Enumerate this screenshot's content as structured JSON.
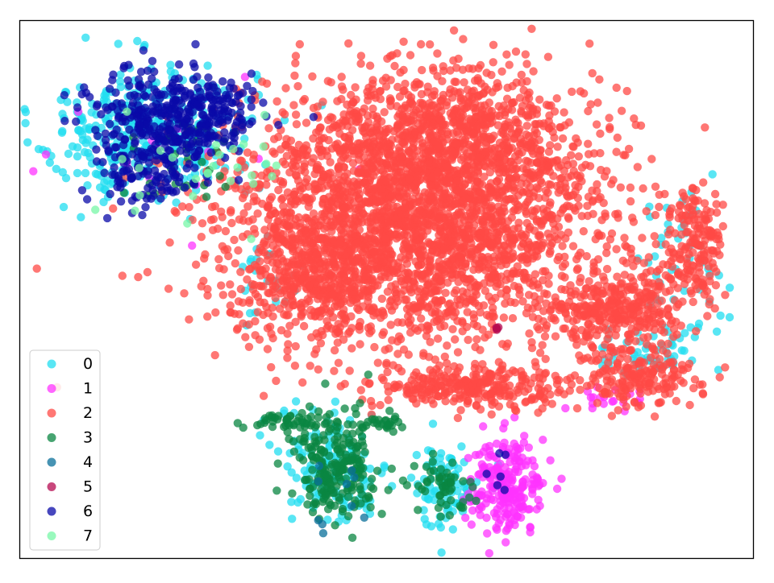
{
  "chart_data": {
    "type": "scatter",
    "title": "",
    "xlabel": "",
    "ylabel": "",
    "axes_ticks": false,
    "grid": false,
    "legend": {
      "placement": "lower-left"
    },
    "xlim": [
      0,
      100
    ],
    "ylim": [
      0,
      100
    ],
    "series": [
      {
        "name": "0",
        "color": "#22ddf0",
        "clusters": [
          {
            "cx": 17.0,
            "cy": 79.5,
            "sx": 7.5,
            "sy": 6.2,
            "n": 380
          },
          {
            "cx": 43.0,
            "cy": 17.0,
            "sx": 3.8,
            "sy": 5.5,
            "n": 130
          },
          {
            "cx": 58.0,
            "cy": 13.5,
            "sx": 2.5,
            "sy": 3.8,
            "n": 90
          },
          {
            "cx": 90.0,
            "cy": 55.0,
            "sx": 3.2,
            "sy": 6.5,
            "n": 45
          },
          {
            "cx": 86.0,
            "cy": 38.0,
            "sx": 4.0,
            "sy": 2.5,
            "n": 50
          },
          {
            "cx": 34.0,
            "cy": 52.0,
            "sx": 2.0,
            "sy": 3.5,
            "n": 22
          }
        ]
      },
      {
        "name": "1",
        "color": "#ff33ff",
        "clusters": [
          {
            "cx": 66.5,
            "cy": 13.5,
            "sx": 2.6,
            "sy": 4.5,
            "n": 230
          },
          {
            "cx": 80.0,
            "cy": 29.5,
            "sx": 3.0,
            "sy": 1.4,
            "n": 20
          },
          {
            "cx": 20.0,
            "cy": 77.0,
            "sx": 9.0,
            "sy": 7.0,
            "n": 14
          }
        ]
      },
      {
        "name": "2",
        "color": "#ff4a45",
        "clusters": [
          {
            "cx": 54.0,
            "cy": 64.0,
            "sx": 12.5,
            "sy": 11.5,
            "n": 3000
          },
          {
            "cx": 60.0,
            "cy": 80.0,
            "sx": 8.0,
            "sy": 5.0,
            "n": 400
          },
          {
            "cx": 40.0,
            "cy": 52.0,
            "sx": 4.5,
            "sy": 5.5,
            "n": 300
          },
          {
            "cx": 82.0,
            "cy": 46.0,
            "sx": 4.5,
            "sy": 4.0,
            "n": 340
          },
          {
            "cx": 92.0,
            "cy": 58.0,
            "sx": 2.0,
            "sy": 5.5,
            "n": 170
          },
          {
            "cx": 62.0,
            "cy": 32.0,
            "sx": 7.0,
            "sy": 2.0,
            "n": 300
          },
          {
            "cx": 84.0,
            "cy": 33.0,
            "sx": 4.0,
            "sy": 2.5,
            "n": 160
          }
        ]
      },
      {
        "name": "3",
        "color": "#0a8542",
        "clusters": [
          {
            "cx": 43.0,
            "cy": 16.5,
            "sx": 3.0,
            "sy": 5.0,
            "n": 230
          },
          {
            "cx": 57.5,
            "cy": 13.5,
            "sx": 1.8,
            "sy": 3.0,
            "n": 55
          },
          {
            "cx": 36.0,
            "cy": 25.5,
            "sx": 2.5,
            "sy": 0.9,
            "n": 40
          },
          {
            "cx": 50.0,
            "cy": 25.5,
            "sx": 1.6,
            "sy": 0.8,
            "n": 22
          },
          {
            "cx": 23.0,
            "cy": 73.0,
            "sx": 5.0,
            "sy": 4.5,
            "n": 32
          }
        ]
      },
      {
        "name": "4",
        "color": "#0a6f9a",
        "clusters": [
          {
            "cx": 44.0,
            "cy": 12.0,
            "sx": 3.0,
            "sy": 6.0,
            "n": 10
          }
        ]
      },
      {
        "name": "5",
        "color": "#b50a50",
        "clusters": [
          {
            "cx": 65.0,
            "cy": 42.8,
            "sx": 0.35,
            "sy": 0.25,
            "n": 4
          }
        ]
      },
      {
        "name": "6",
        "color": "#0a0aa8",
        "clusters": [
          {
            "cx": 20.0,
            "cy": 82.0,
            "sx": 5.5,
            "sy": 4.2,
            "n": 330
          },
          {
            "cx": 17.0,
            "cy": 71.5,
            "sx": 3.5,
            "sy": 3.0,
            "n": 110
          },
          {
            "cx": 27.5,
            "cy": 82.5,
            "sx": 2.5,
            "sy": 3.0,
            "n": 60
          },
          {
            "cx": 66.0,
            "cy": 14.0,
            "sx": 1.0,
            "sy": 3.5,
            "n": 6
          }
        ]
      },
      {
        "name": "7",
        "color": "#77f7a7",
        "clusters": [
          {
            "cx": 24.0,
            "cy": 72.0,
            "sx": 6.0,
            "sy": 5.0,
            "n": 28
          }
        ]
      }
    ]
  }
}
